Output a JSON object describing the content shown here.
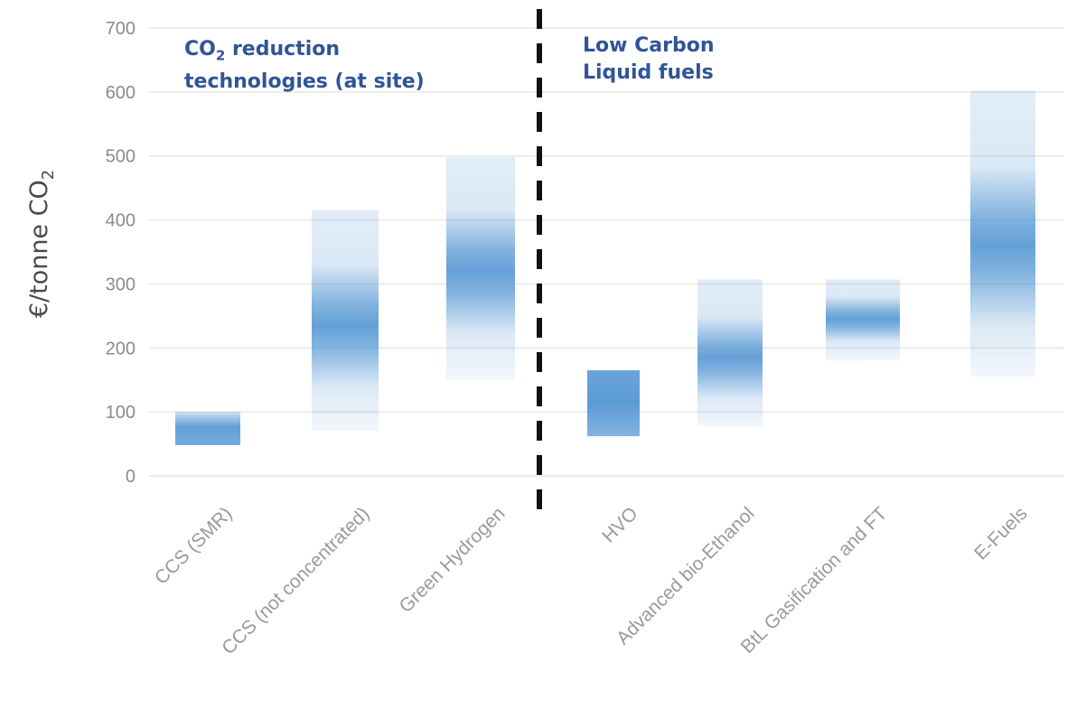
{
  "chart_data": {
    "type": "bar",
    "style": "floating range bars with gradient (darkest at most likely value)",
    "ylabel": "€/tonne CO",
    "ylabel_sub": "2",
    "yticks": [
      0,
      100,
      200,
      300,
      400,
      500,
      600,
      700
    ],
    "ylim": [
      0,
      700
    ],
    "grid": true,
    "groups": [
      {
        "label": "CO",
        "label_sub": "2",
        "label_rest": " reduction",
        "label_line2": "technologies (at site)",
        "categories": [
          0,
          1,
          2
        ]
      },
      {
        "label": "Low Carbon",
        "label_line2": "Liquid fuels",
        "categories": [
          3,
          4,
          5,
          6
        ]
      }
    ],
    "categories": [
      "CCS (SMR)",
      "CCS (not concentrated)",
      "Green Hydrogen",
      "HVO",
      "Advanced bio-Ethanol",
      "BtL Gasification and FT",
      "E-Fuels"
    ],
    "ranges": [
      {
        "low": 48,
        "high": 100,
        "peak": 70
      },
      {
        "low": 70,
        "high": 415,
        "peak": 235
      },
      {
        "low": 150,
        "high": 498,
        "peak": 320
      },
      {
        "low": 62,
        "high": 165,
        "peak": 110
      },
      {
        "low": 78,
        "high": 307,
        "peak": 185
      },
      {
        "low": 180,
        "high": 307,
        "peak": 245
      },
      {
        "low": 155,
        "high": 602,
        "peak": 360
      }
    ],
    "divider_after_category": 2,
    "color": "#5b9bd5"
  }
}
